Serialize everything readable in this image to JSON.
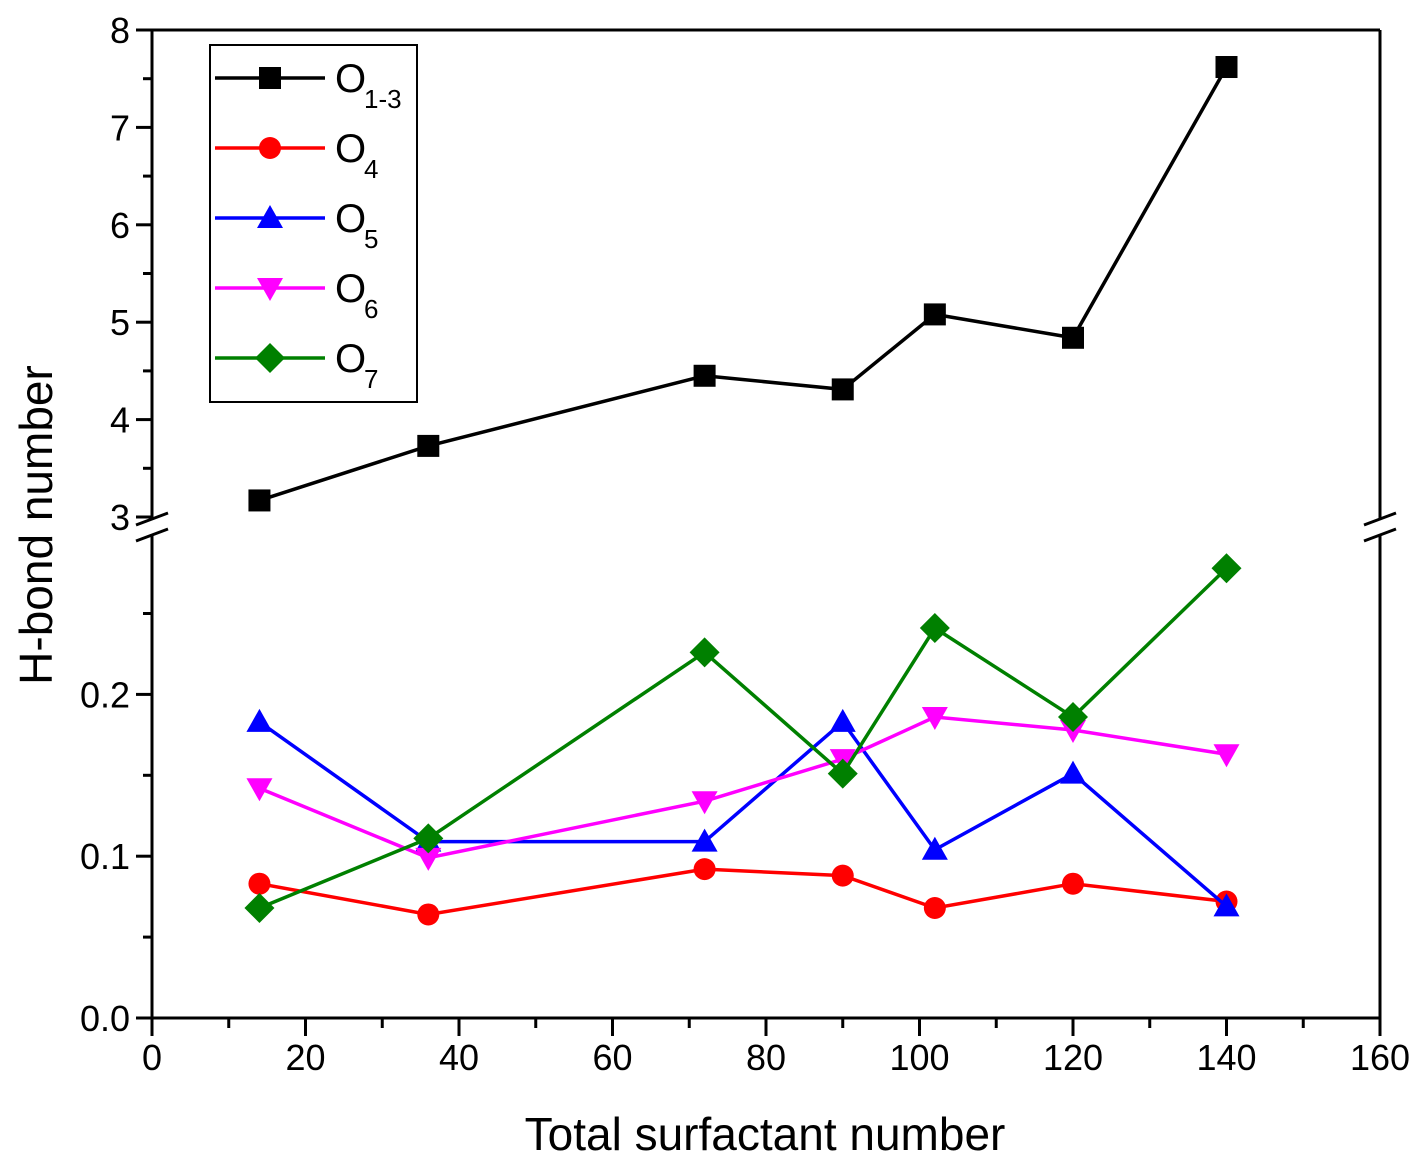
{
  "chart_data": {
    "type": "line",
    "title": "",
    "xlabel": "Total surfactant number",
    "ylabel": "H-bond number",
    "xlim": [
      0,
      160
    ],
    "x_ticks": [
      "0",
      "20",
      "40",
      "60",
      "80",
      "100",
      "120",
      "140",
      "160"
    ],
    "y_axis_break": true,
    "upper_ylim": [
      3,
      8
    ],
    "upper_y_ticks": [
      "3",
      "4",
      "5",
      "6",
      "7",
      "8"
    ],
    "lower_ylim": [
      0,
      0.3
    ],
    "lower_y_ticks": [
      "0.0",
      "0.1",
      "0.2"
    ],
    "legend_position": "top-left",
    "x": [
      14,
      36,
      72,
      90,
      102,
      120,
      140
    ],
    "series": [
      {
        "name": "O",
        "sub": "1-3",
        "segment": "upper",
        "color": "#000000",
        "marker": "square",
        "values": [
          3.17,
          3.73,
          4.45,
          4.31,
          5.08,
          4.84,
          7.62
        ]
      },
      {
        "name": "O",
        "sub": "4",
        "segment": "lower",
        "color": "#ff0000",
        "marker": "circle",
        "values": [
          0.083,
          0.064,
          0.092,
          0.088,
          0.068,
          0.083,
          0.072
        ]
      },
      {
        "name": "O",
        "sub": "5",
        "segment": "lower",
        "color": "#0000ff",
        "marker": "triangle-up",
        "values": [
          0.183,
          0.109,
          0.109,
          0.183,
          0.104,
          0.151,
          0.069
        ]
      },
      {
        "name": "O",
        "sub": "6",
        "segment": "lower",
        "color": "#ff00ff",
        "marker": "triangle-down",
        "values": [
          0.142,
          0.099,
          0.134,
          0.16,
          0.186,
          0.178,
          0.163
        ]
      },
      {
        "name": "O",
        "sub": "7",
        "segment": "lower",
        "color": "#008000",
        "marker": "diamond",
        "values": [
          0.068,
          0.111,
          0.226,
          0.151,
          0.241,
          0.186,
          0.278
        ]
      }
    ]
  }
}
